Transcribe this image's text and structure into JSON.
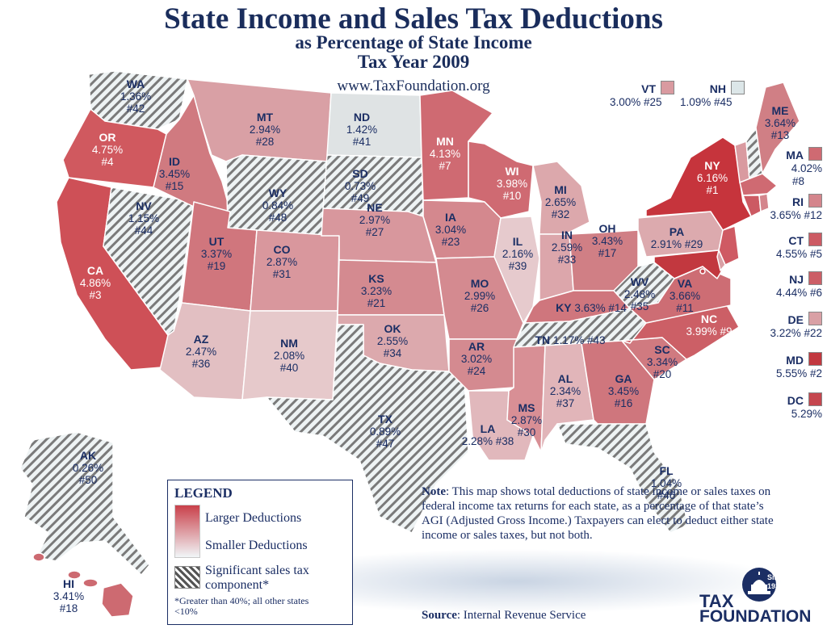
{
  "title": "State Income and Sales Tax Deductions",
  "subtitle1": "as Percentage of State Income",
  "subtitle2": "Tax Year 2009",
  "url": "www.TaxFoundation.org",
  "colors": {
    "larger": "#c9404a",
    "smaller": "#f1f6f8",
    "hatch": "#555555",
    "text": "#1b2e64"
  },
  "states": [
    {
      "abbr": "WA",
      "pct": "1.36%",
      "rank": "#42"
    },
    {
      "abbr": "OR",
      "pct": "4.75%",
      "rank": "#4"
    },
    {
      "abbr": "CA",
      "pct": "4.86%",
      "rank": "#3"
    },
    {
      "abbr": "ID",
      "pct": "3.45%",
      "rank": "#15"
    },
    {
      "abbr": "NV",
      "pct": "1.15%",
      "rank": "#44"
    },
    {
      "abbr": "MT",
      "pct": "2.94%",
      "rank": "#28"
    },
    {
      "abbr": "WY",
      "pct": "0.84%",
      "rank": "#48"
    },
    {
      "abbr": "UT",
      "pct": "3.37%",
      "rank": "#19"
    },
    {
      "abbr": "AZ",
      "pct": "2.47%",
      "rank": "#36"
    },
    {
      "abbr": "CO",
      "pct": "2.87%",
      "rank": "#31"
    },
    {
      "abbr": "NM",
      "pct": "2.08%",
      "rank": "#40"
    },
    {
      "abbr": "ND",
      "pct": "1.42%",
      "rank": "#41"
    },
    {
      "abbr": "SD",
      "pct": "0.73%",
      "rank": "#49"
    },
    {
      "abbr": "NE",
      "pct": "2.97%",
      "rank": "#27"
    },
    {
      "abbr": "KS",
      "pct": "3.23%",
      "rank": "#21"
    },
    {
      "abbr": "OK",
      "pct": "2.55%",
      "rank": "#34"
    },
    {
      "abbr": "TX",
      "pct": "0.89%",
      "rank": "#47"
    },
    {
      "abbr": "MN",
      "pct": "4.13%",
      "rank": "#7"
    },
    {
      "abbr": "IA",
      "pct": "3.04%",
      "rank": "#23"
    },
    {
      "abbr": "MO",
      "pct": "2.99%",
      "rank": "#26"
    },
    {
      "abbr": "AR",
      "pct": "3.02%",
      "rank": "#24"
    },
    {
      "abbr": "LA",
      "pct": "2.28%",
      "rank": "#38"
    },
    {
      "abbr": "WI",
      "pct": "3.98%",
      "rank": "#10"
    },
    {
      "abbr": "IL",
      "pct": "2.16%",
      "rank": "#39"
    },
    {
      "abbr": "MS",
      "pct": "2.87%",
      "rank": "#30"
    },
    {
      "abbr": "MI",
      "pct": "2.65%",
      "rank": "#32"
    },
    {
      "abbr": "IN",
      "pct": "2.59%",
      "rank": "#33"
    },
    {
      "abbr": "KY",
      "pct": "3.63%",
      "rank": "#14"
    },
    {
      "abbr": "TN",
      "pct": "1.17%",
      "rank": "#43"
    },
    {
      "abbr": "AL",
      "pct": "2.34%",
      "rank": "#37"
    },
    {
      "abbr": "OH",
      "pct": "3.43%",
      "rank": "#17"
    },
    {
      "abbr": "WV",
      "pct": "2.48%",
      "rank": "#35"
    },
    {
      "abbr": "GA",
      "pct": "3.45%",
      "rank": "#16"
    },
    {
      "abbr": "FL",
      "pct": "1.04%",
      "rank": "#46"
    },
    {
      "abbr": "SC",
      "pct": "3.34%",
      "rank": "#20"
    },
    {
      "abbr": "NC",
      "pct": "3.99%",
      "rank": "#9"
    },
    {
      "abbr": "VA",
      "pct": "3.66%",
      "rank": "#11"
    },
    {
      "abbr": "PA",
      "pct": "2.91%",
      "rank": "#29"
    },
    {
      "abbr": "NY",
      "pct": "6.16%",
      "rank": "#1"
    },
    {
      "abbr": "ME",
      "pct": "3.64%",
      "rank": "#13"
    },
    {
      "abbr": "AK",
      "pct": "0.26%",
      "rank": "#50"
    },
    {
      "abbr": "HI",
      "pct": "3.41%",
      "rank": "#18"
    }
  ],
  "side_states": [
    {
      "abbr": "VT",
      "value": "3.00% #25",
      "color": "#d99aa0"
    },
    {
      "abbr": "NH",
      "value": "1.09% #45",
      "color": "#dce6e8"
    },
    {
      "abbr": "MA",
      "value": "4.02%",
      "rank": "#8",
      "color": "#cf6a72"
    },
    {
      "abbr": "RI",
      "value": "3.65% #12",
      "color": "#d4858c"
    },
    {
      "abbr": "CT",
      "value": "4.55% #5",
      "color": "#cc5a63"
    },
    {
      "abbr": "NJ",
      "value": "4.44% #6",
      "color": "#cc5e66"
    },
    {
      "abbr": "DE",
      "value": "3.22% #22",
      "color": "#d9a0a5"
    },
    {
      "abbr": "MD",
      "value": "5.55% #2",
      "color": "#c2383f"
    },
    {
      "abbr": "DC",
      "value": "5.29%",
      "color": "#c5464e"
    }
  ],
  "legend": {
    "title": "LEGEND",
    "larger": "Larger Deductions",
    "smaller": "Smaller Deductions",
    "hatch_line1": "Significant sales tax",
    "hatch_line2": "component*",
    "footnote_line1": "*Greater than 40%; all other states",
    "footnote_line2": "<10%"
  },
  "note": {
    "label": "Note",
    "text": ": This map shows total deductions of state income or sales taxes on federal income tax returns for each state, as a percentage of that state’s AGI (Adjusted Gross Income.) Taxpayers can elect to deduct either state income or sales taxes, but not both."
  },
  "source": {
    "label": "Source",
    "text": ": Internal Revenue Service"
  },
  "brand": {
    "line1": "TAX",
    "line2": "FOUNDATION",
    "badge1": "Since",
    "badge2": "1937"
  }
}
